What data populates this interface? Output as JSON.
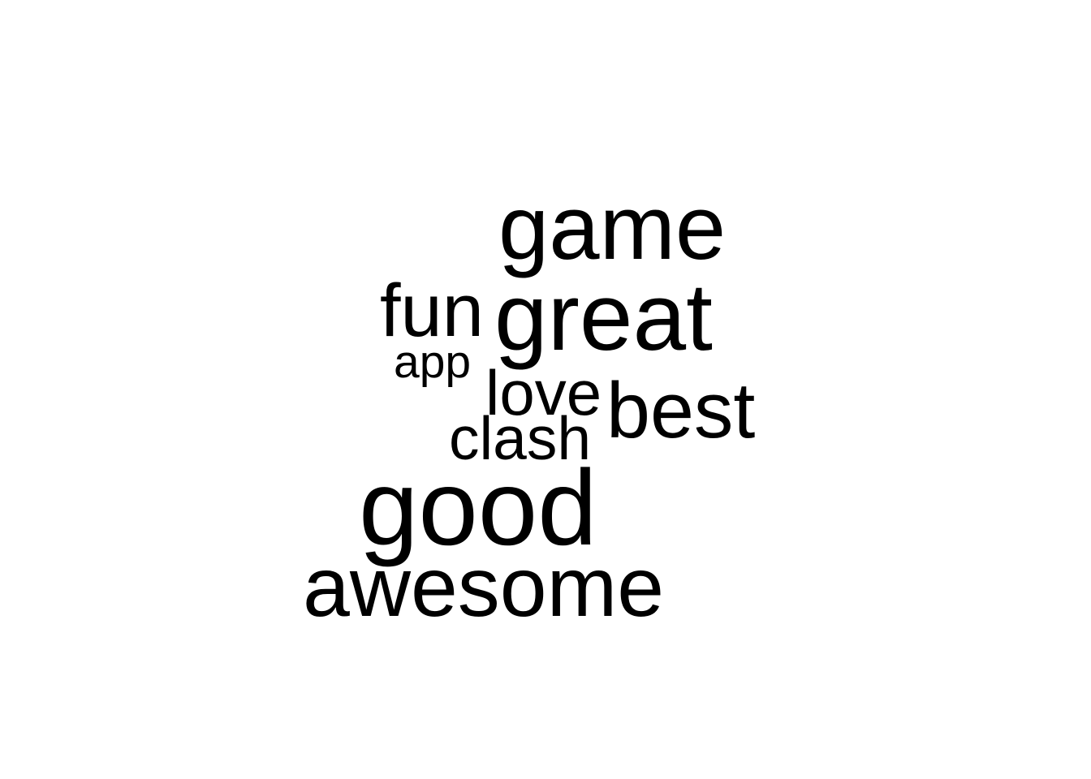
{
  "wordcloud": {
    "words": [
      {
        "text": "game"
      },
      {
        "text": "fun"
      },
      {
        "text": "great"
      },
      {
        "text": "app"
      },
      {
        "text": "love"
      },
      {
        "text": "best"
      },
      {
        "text": "clash"
      },
      {
        "text": "good"
      },
      {
        "text": "awesome"
      }
    ],
    "text_color": "#000000",
    "background_color": "#ffffff"
  }
}
